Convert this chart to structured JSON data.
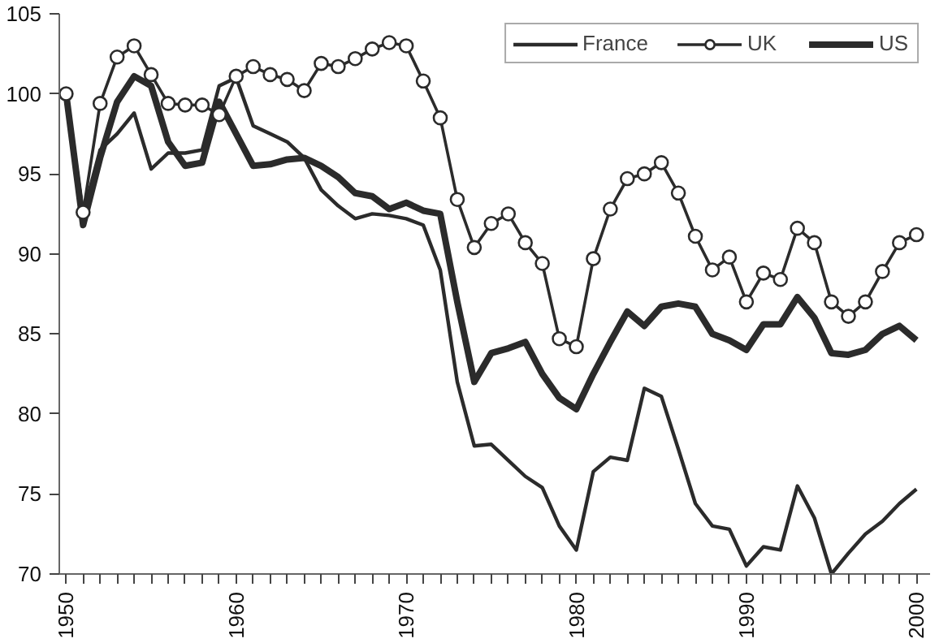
{
  "chart_data": {
    "type": "line",
    "x": [
      1950,
      1951,
      1952,
      1953,
      1954,
      1955,
      1956,
      1957,
      1958,
      1959,
      1960,
      1961,
      1962,
      1963,
      1964,
      1965,
      1966,
      1967,
      1968,
      1969,
      1970,
      1971,
      1972,
      1973,
      1974,
      1975,
      1976,
      1977,
      1978,
      1979,
      1980,
      1981,
      1982,
      1983,
      1984,
      1985,
      1986,
      1987,
      1988,
      1989,
      1990,
      1991,
      1992,
      1993,
      1994,
      1995,
      1996,
      1997,
      1998,
      1999,
      2000
    ],
    "series": [
      {
        "name": "France",
        "color": "#2b2b2b",
        "marker": "none",
        "values": [
          100,
          92.5,
          96.5,
          97.5,
          98.8,
          95.3,
          96.3,
          96.3,
          96.5,
          100.5,
          101,
          98,
          97.5,
          97,
          96,
          94,
          93,
          92.2,
          92.5,
          92.4,
          92.2,
          91.8,
          89,
          82,
          78,
          78.1,
          77.1,
          76.1,
          75.4,
          73,
          71.5,
          76.4,
          77.3,
          77.1,
          81.6,
          81.1,
          77.8,
          74.4,
          73,
          72.8,
          70.5,
          71.7,
          71.5,
          75.5,
          73.5,
          70,
          71.3,
          72.5,
          73.3,
          74.4,
          75.3
        ]
      },
      {
        "name": "UK",
        "color": "#2b2b2b",
        "marker": "circle",
        "values": [
          100,
          92.6,
          99.4,
          102.3,
          103,
          101.2,
          99.4,
          99.3,
          99.3,
          98.7,
          101.1,
          101.7,
          101.2,
          100.9,
          100.2,
          101.9,
          101.7,
          102.2,
          102.8,
          103.2,
          103,
          100.8,
          98.5,
          93.4,
          90.4,
          91.9,
          92.5,
          90.7,
          89.4,
          84.7,
          84.2,
          89.7,
          92.8,
          94.7,
          95,
          95.7,
          93.8,
          91.1,
          89,
          89.8,
          87,
          88.8,
          88.4,
          91.6,
          90.7,
          87,
          86.1,
          87,
          88.9,
          90.7,
          91.2
        ]
      },
      {
        "name": "US",
        "color": "#2b2b2b",
        "marker": "none",
        "values": [
          100,
          91.8,
          96,
          99.5,
          101.1,
          100.5,
          97,
          95.5,
          95.7,
          99.5,
          97.5,
          95.5,
          95.6,
          95.9,
          96,
          95.5,
          94.8,
          93.8,
          93.6,
          92.8,
          93.2,
          92.7,
          92.5,
          87,
          82,
          83.8,
          84.1,
          84.5,
          82.5,
          81,
          80.3,
          82.5,
          84.5,
          86.4,
          85.5,
          86.7,
          86.9,
          86.7,
          85,
          84.6,
          84,
          85.6,
          85.6,
          87.3,
          86,
          83.8,
          83.7,
          84,
          85,
          85.5,
          84.6
        ]
      }
    ],
    "xlim": [
      1949.6,
      2000.8
    ],
    "xticks": [
      1950,
      1960,
      1970,
      1980,
      1990,
      2000
    ],
    "ylim": [
      70,
      105
    ],
    "yticks": [
      70,
      75,
      80,
      85,
      90,
      95,
      100,
      105
    ],
    "grid": false,
    "legend": "top right",
    "line_style": "solid"
  }
}
